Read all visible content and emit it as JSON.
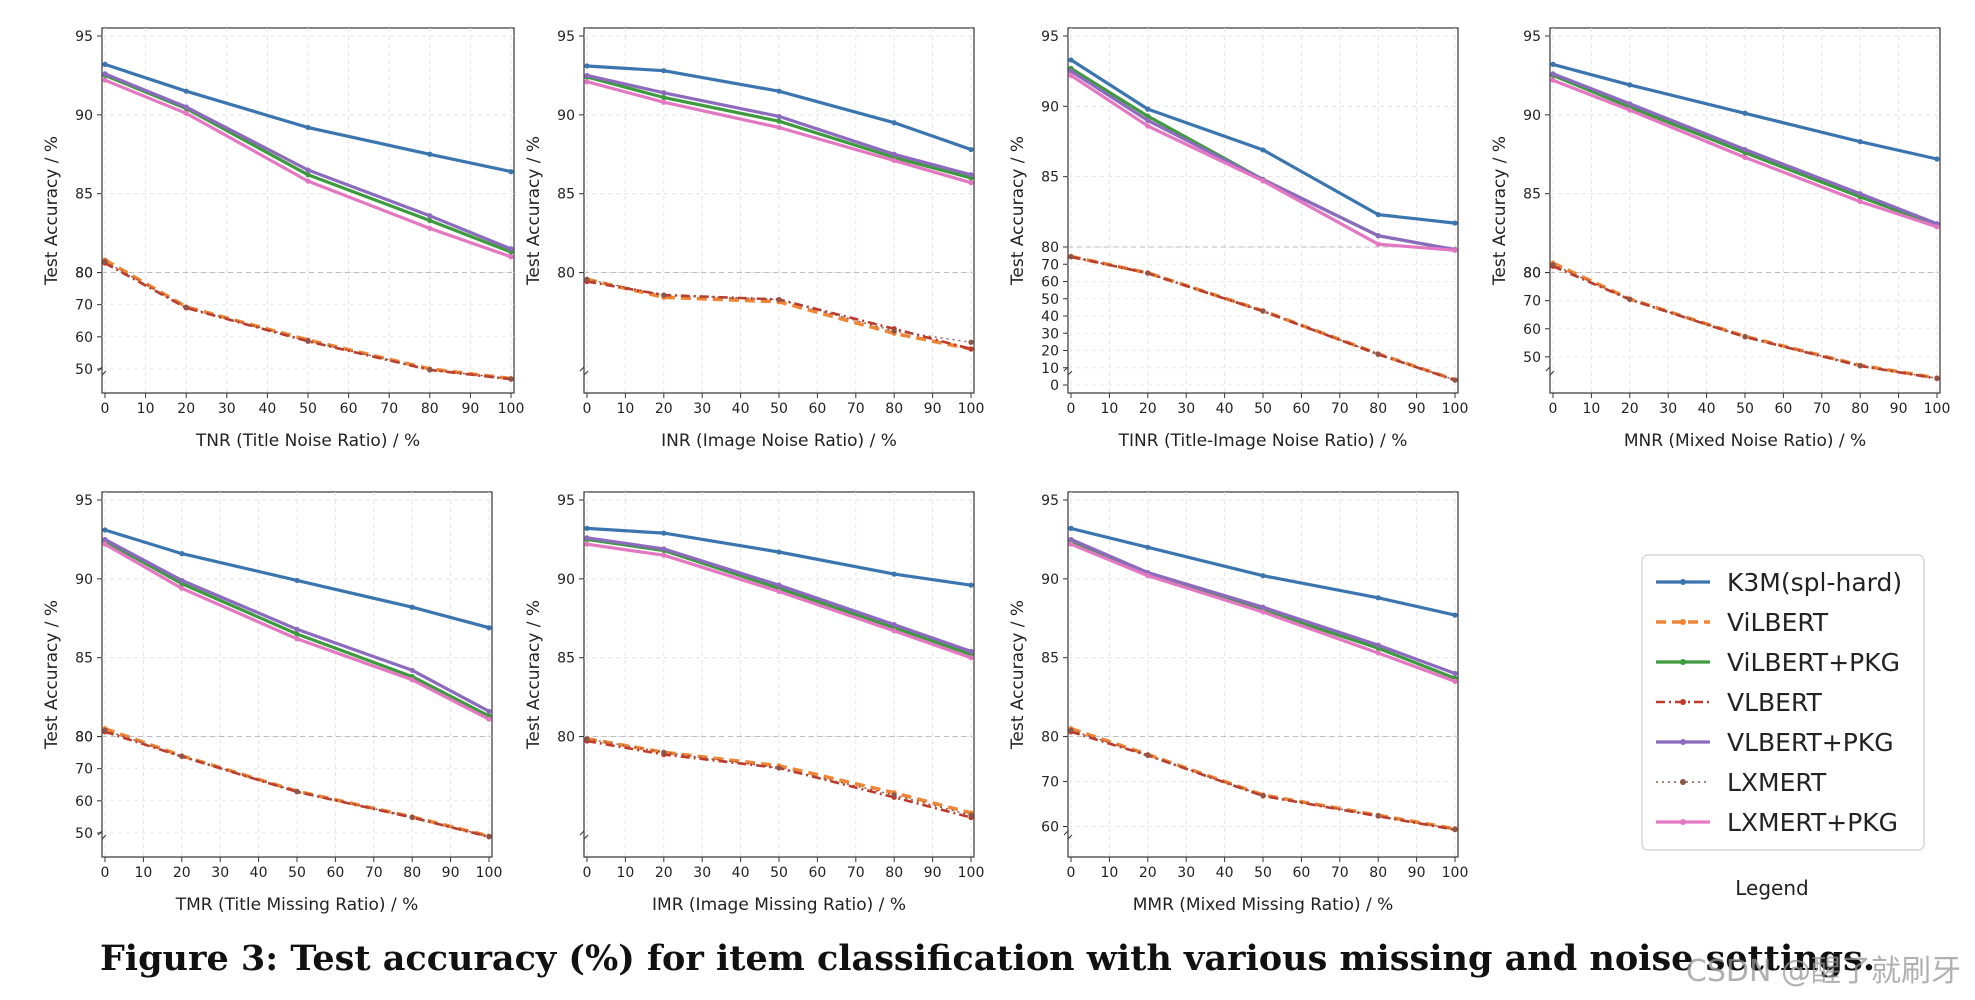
{
  "caption": "Figure 3: Test accuracy (%) for item classification with various missing and noise settings.",
  "watermark": "CSDN @醒了就刷牙",
  "legend": {
    "title": "Legend",
    "entries": [
      {
        "name": "K3M(spl-hard)",
        "color": "#3b75af",
        "dash": "",
        "width": 3.2
      },
      {
        "name": "ViLBERT",
        "color": "#ef8636",
        "dash": "10,6",
        "width": 3.6
      },
      {
        "name": "ViLBERT+PKG",
        "color": "#3d9b3d",
        "dash": "",
        "width": 3.2
      },
      {
        "name": "VLBERT",
        "color": "#c0392b",
        "dash": "9,4,2,4",
        "width": 2.6
      },
      {
        "name": "VLBERT+PKG",
        "color": "#8c6bbf",
        "dash": "",
        "width": 3.2
      },
      {
        "name": "LXMERT",
        "color": "#8c564b",
        "dash": "2,4",
        "width": 1.4
      },
      {
        "name": "LXMERT+PKG",
        "color": "#e377c2",
        "dash": "",
        "width": 3.2
      }
    ]
  },
  "chart_data": [
    {
      "type": "line",
      "xlabel": "TNR (Title Noise Ratio) / %",
      "ylabel": "Test Accuracy / %",
      "x": [
        0,
        20,
        50,
        80,
        100
      ],
      "xticks": [
        "0",
        "10",
        "20",
        "30",
        "40",
        "50",
        "60",
        "70",
        "80",
        "90",
        "100"
      ],
      "scale": {
        "upper": [
          80,
          95
        ],
        "upper_ticks": [
          "80",
          "85",
          "90",
          "95"
        ],
        "lower": [
          45,
          80
        ],
        "lower_ticks": [
          "50",
          "60",
          "70",
          "80"
        ],
        "lower_frac": 0.33
      },
      "series": [
        {
          "name": "K3M(spl-hard)",
          "values": [
            93.2,
            91.5,
            89.2,
            87.5,
            86.4
          ]
        },
        {
          "name": "ViLBERT",
          "values": [
            80.8,
            69.3,
            59.0,
            50.0,
            47.0
          ]
        },
        {
          "name": "ViLBERT+PKG",
          "values": [
            92.5,
            90.4,
            86.2,
            83.3,
            81.3
          ]
        },
        {
          "name": "VLBERT",
          "values": [
            80.6,
            69.0,
            58.6,
            49.7,
            46.8
          ]
        },
        {
          "name": "VLBERT+PKG",
          "values": [
            92.6,
            90.5,
            86.5,
            83.6,
            81.5
          ]
        },
        {
          "name": "LXMERT",
          "values": [
            80.7,
            69.2,
            58.8,
            49.8,
            46.9
          ]
        },
        {
          "name": "LXMERT+PKG",
          "values": [
            92.2,
            90.1,
            85.8,
            82.8,
            81.0
          ]
        }
      ]
    },
    {
      "type": "line",
      "xlabel": "INR (Image Noise Ratio)  / %",
      "ylabel": "Test Accuracy / %",
      "x": [
        0,
        20,
        50,
        80,
        100
      ],
      "xticks": [
        "0",
        "10",
        "20",
        "30",
        "40",
        "50",
        "60",
        "70",
        "80",
        "90",
        "100"
      ],
      "scale": {
        "upper": [
          80,
          95
        ],
        "upper_ticks": [
          "80",
          "85",
          "90",
          "95"
        ],
        "lower": [
          75,
          80
        ],
        "lower_ticks": [],
        "lower_frac": 0.33
      },
      "series": [
        {
          "name": "K3M(spl-hard)",
          "values": [
            93.1,
            92.8,
            91.5,
            89.5,
            87.8
          ]
        },
        {
          "name": "ViLBERT",
          "values": [
            79.7,
            78.9,
            78.7,
            77.3,
            76.6
          ]
        },
        {
          "name": "ViLBERT+PKG",
          "values": [
            92.4,
            91.1,
            89.6,
            87.3,
            86.0
          ]
        },
        {
          "name": "VLBERT",
          "values": [
            79.6,
            79.0,
            78.8,
            77.5,
            76.6
          ]
        },
        {
          "name": "VLBERT+PKG",
          "values": [
            92.5,
            91.4,
            89.9,
            87.5,
            86.2
          ]
        },
        {
          "name": "LXMERT",
          "values": [
            79.7,
            79.0,
            78.8,
            77.4,
            76.9
          ]
        },
        {
          "name": "LXMERT+PKG",
          "values": [
            92.1,
            90.8,
            89.2,
            87.1,
            85.7
          ]
        }
      ]
    },
    {
      "type": "line",
      "xlabel": "TINR (Title-Image Noise Ratio) / %",
      "ylabel": "Test Accuracy / %",
      "x": [
        0,
        20,
        50,
        80,
        100
      ],
      "xticks": [
        "0",
        "10",
        "20",
        "30",
        "40",
        "50",
        "60",
        "70",
        "80",
        "90",
        "100"
      ],
      "scale": {
        "upper": [
          80,
          95
        ],
        "upper_ticks": [
          "80",
          "85",
          "90",
          "95"
        ],
        "lower": [
          0,
          80
        ],
        "lower_ticks": [
          "0",
          "10",
          "20",
          "30",
          "40",
          "50",
          "60",
          "70"
        ],
        "lower_frac": 0.4
      },
      "series": [
        {
          "name": "K3M(spl-hard)",
          "values": [
            93.3,
            89.8,
            86.9,
            82.3,
            81.7
          ]
        },
        {
          "name": "ViLBERT",
          "values": [
            74.5,
            65.0,
            43.0,
            18.0,
            3.0
          ]
        },
        {
          "name": "ViLBERT+PKG",
          "values": [
            92.7,
            89.3,
            84.8,
            80.8,
            78.3
          ]
        },
        {
          "name": "VLBERT",
          "values": [
            74.3,
            64.8,
            42.8,
            17.8,
            2.8
          ]
        },
        {
          "name": "VLBERT+PKG",
          "values": [
            92.5,
            89.0,
            84.8,
            80.8,
            78.5
          ]
        },
        {
          "name": "LXMERT",
          "values": [
            74.4,
            64.9,
            42.9,
            17.9,
            2.9
          ]
        },
        {
          "name": "LXMERT+PKG",
          "values": [
            92.2,
            88.6,
            84.7,
            80.2,
            78.1
          ]
        }
      ]
    },
    {
      "type": "line",
      "xlabel": "MNR (Mixed Noise Ratio) / %",
      "ylabel": "Test Accuracy / %",
      "x": [
        0,
        20,
        50,
        80,
        100
      ],
      "xticks": [
        "0",
        "10",
        "20",
        "30",
        "40",
        "50",
        "60",
        "70",
        "80",
        "90",
        "100"
      ],
      "scale": {
        "upper": [
          80,
          95
        ],
        "upper_ticks": [
          "80",
          "85",
          "90",
          "95"
        ],
        "lower": [
          40,
          80
        ],
        "lower_ticks": [
          "50",
          "60",
          "70",
          "80"
        ],
        "lower_frac": 0.33
      },
      "series": [
        {
          "name": "K3M(spl-hard)",
          "values": [
            93.2,
            91.9,
            90.1,
            88.3,
            87.2
          ]
        },
        {
          "name": "ViLBERT",
          "values": [
            80.6,
            70.6,
            57.3,
            47.0,
            42.5
          ]
        },
        {
          "name": "ViLBERT+PKG",
          "values": [
            92.5,
            90.5,
            87.6,
            84.8,
            83.0
          ]
        },
        {
          "name": "VLBERT",
          "values": [
            80.4,
            70.4,
            57.1,
            46.8,
            42.3
          ]
        },
        {
          "name": "VLBERT+PKG",
          "values": [
            92.6,
            90.7,
            87.8,
            85.0,
            83.1
          ]
        },
        {
          "name": "LXMERT",
          "values": [
            80.5,
            70.5,
            57.2,
            46.9,
            42.4
          ]
        },
        {
          "name": "LXMERT+PKG",
          "values": [
            92.2,
            90.3,
            87.3,
            84.5,
            82.9
          ]
        }
      ]
    },
    {
      "type": "line",
      "xlabel": "TMR (Title Missing Ratio) / %",
      "ylabel": "Test Accuracy / %",
      "x": [
        0,
        20,
        50,
        80,
        100
      ],
      "xticks": [
        "0",
        "10",
        "20",
        "30",
        "40",
        "50",
        "60",
        "70",
        "80",
        "90",
        "100"
      ],
      "scale": {
        "upper": [
          80,
          95
        ],
        "upper_ticks": [
          "80",
          "85",
          "90",
          "95"
        ],
        "lower": [
          45,
          80
        ],
        "lower_ticks": [
          "50",
          "60",
          "70",
          "80"
        ],
        "lower_frac": 0.33
      },
      "series": [
        {
          "name": "K3M(spl-hard)",
          "values": [
            93.1,
            91.6,
            89.9,
            88.2,
            86.9
          ]
        },
        {
          "name": "ViLBERT",
          "values": [
            80.5,
            74.0,
            63.0,
            55.0,
            49.0
          ]
        },
        {
          "name": "ViLBERT+PKG",
          "values": [
            92.4,
            89.7,
            86.5,
            83.8,
            81.3
          ]
        },
        {
          "name": "VLBERT",
          "values": [
            80.3,
            73.8,
            62.8,
            54.8,
            48.8
          ]
        },
        {
          "name": "VLBERT+PKG",
          "values": [
            92.5,
            89.9,
            86.8,
            84.2,
            81.6
          ]
        },
        {
          "name": "LXMERT",
          "values": [
            80.4,
            73.9,
            62.9,
            54.9,
            48.9
          ]
        },
        {
          "name": "LXMERT+PKG",
          "values": [
            92.2,
            89.4,
            86.2,
            83.6,
            81.1
          ]
        }
      ]
    },
    {
      "type": "line",
      "xlabel": "IMR (Image Missing Ratio) / %",
      "ylabel": "Test Accuracy / %",
      "x": [
        0,
        20,
        50,
        80,
        100
      ],
      "xticks": [
        "0",
        "10",
        "20",
        "30",
        "40",
        "50",
        "60",
        "70",
        "80",
        "90",
        "100"
      ],
      "scale": {
        "upper": [
          80,
          95
        ],
        "upper_ticks": [
          "80",
          "85",
          "90",
          "95"
        ],
        "lower": [
          75,
          80
        ],
        "lower_ticks": [],
        "lower_frac": 0.33
      },
      "series": [
        {
          "name": "K3M(spl-hard)",
          "values": [
            93.2,
            92.9,
            91.7,
            90.3,
            89.6
          ]
        },
        {
          "name": "ViLBERT",
          "values": [
            79.9,
            79.3,
            78.7,
            77.5,
            76.6
          ]
        },
        {
          "name": "ViLBERT+PKG",
          "values": [
            92.5,
            91.8,
            89.4,
            86.9,
            85.2
          ]
        },
        {
          "name": "VLBERT",
          "values": [
            79.8,
            79.2,
            78.6,
            77.3,
            76.4
          ]
        },
        {
          "name": "VLBERT+PKG",
          "values": [
            92.6,
            91.9,
            89.6,
            87.1,
            85.4
          ]
        },
        {
          "name": "LXMERT",
          "values": [
            79.9,
            79.3,
            78.6,
            77.4,
            76.5
          ]
        },
        {
          "name": "LXMERT+PKG",
          "values": [
            92.2,
            91.5,
            89.2,
            86.7,
            85.0
          ]
        }
      ]
    },
    {
      "type": "line",
      "xlabel": "MMR (Mixed Missing Ratio) / %",
      "ylabel": "Test Accuracy / %",
      "x": [
        0,
        20,
        50,
        80,
        100
      ],
      "xticks": [
        "0",
        "10",
        "20",
        "30",
        "40",
        "50",
        "60",
        "70",
        "80",
        "90",
        "100"
      ],
      "scale": {
        "upper": [
          80,
          95
        ],
        "upper_ticks": [
          "85",
          "90",
          "95"
        ],
        "lower": [
          55,
          80
        ],
        "lower_ticks": [
          "60",
          "70",
          "80"
        ],
        "lower_frac": 0.33
      },
      "series": [
        {
          "name": "K3M(spl-hard)",
          "values": [
            93.2,
            92.0,
            90.2,
            88.8,
            87.7
          ]
        },
        {
          "name": "ViLBERT",
          "values": [
            80.5,
            76.0,
            67.0,
            62.5,
            59.5
          ]
        },
        {
          "name": "ViLBERT+PKG",
          "values": [
            92.4,
            90.3,
            88.0,
            85.6,
            83.7
          ]
        },
        {
          "name": "VLBERT",
          "values": [
            80.3,
            75.8,
            66.8,
            62.3,
            59.3
          ]
        },
        {
          "name": "VLBERT+PKG",
          "values": [
            92.5,
            90.4,
            88.2,
            85.8,
            84.0
          ]
        },
        {
          "name": "LXMERT",
          "values": [
            80.4,
            75.9,
            66.9,
            62.4,
            59.4
          ]
        },
        {
          "name": "LXMERT+PKG",
          "values": [
            92.2,
            90.2,
            87.9,
            85.3,
            83.5
          ]
        }
      ]
    }
  ]
}
